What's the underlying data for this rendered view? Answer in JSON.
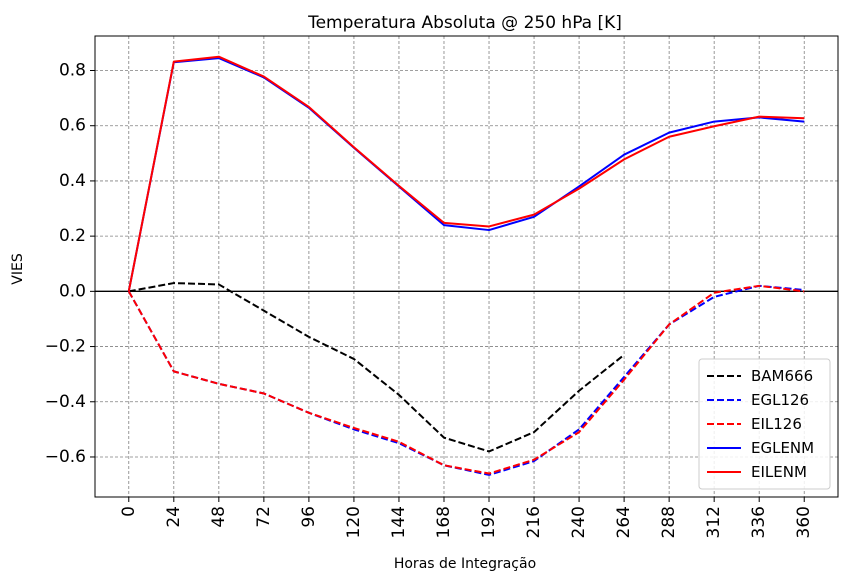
{
  "chart_data": {
    "type": "line",
    "title": "Temperatura Absoluta @ 250 hPa [K]",
    "xlabel": "Horas de Integração",
    "ylabel": "VIES",
    "x": [
      0,
      24,
      48,
      72,
      96,
      120,
      144,
      168,
      192,
      216,
      240,
      264,
      288,
      312,
      336,
      360
    ],
    "x_tick_labels": [
      "0",
      "24",
      "48",
      "72",
      "96",
      "120",
      "144",
      "168",
      "192",
      "216",
      "240",
      "264",
      "288",
      "312",
      "336",
      "360"
    ],
    "xlim": [
      -18,
      378
    ],
    "ylim": [
      -0.745,
      0.925
    ],
    "y_ticks": [
      -0.6,
      -0.4,
      -0.2,
      0.0,
      0.2,
      0.4,
      0.6,
      0.8
    ],
    "y_tick_labels": [
      "−0.6",
      "−0.4",
      "−0.2",
      "0.0",
      "0.2",
      "0.4",
      "0.6",
      "0.8"
    ],
    "grid": true,
    "zero_line": true,
    "legend_position": "bottom-right",
    "series": [
      {
        "name": "BAM666",
        "color": "#000000",
        "dash": "dashed",
        "values": [
          0.0,
          0.03,
          0.025,
          -0.07,
          -0.165,
          -0.245,
          -0.375,
          -0.53,
          -0.58,
          -0.51,
          -0.36,
          -0.23,
          null,
          null,
          null,
          null
        ]
      },
      {
        "name": "EGL126",
        "color": "#0000ff",
        "dash": "dashed",
        "values": [
          0.0,
          -0.29,
          -0.335,
          -0.37,
          -0.44,
          -0.5,
          -0.55,
          -0.63,
          -0.665,
          -0.615,
          -0.5,
          -0.31,
          -0.12,
          -0.02,
          0.02,
          0.005
        ]
      },
      {
        "name": "EIL126",
        "color": "#ff0000",
        "dash": "dashed",
        "values": [
          0.0,
          -0.29,
          -0.335,
          -0.37,
          -0.44,
          -0.495,
          -0.545,
          -0.63,
          -0.66,
          -0.61,
          -0.51,
          -0.32,
          -0.12,
          -0.005,
          0.02,
          0.0
        ]
      },
      {
        "name": "EGLENM",
        "color": "#0000ff",
        "dash": "solid",
        "values": [
          0.0,
          0.83,
          0.845,
          0.775,
          0.665,
          0.52,
          0.38,
          0.24,
          0.222,
          0.27,
          0.38,
          0.495,
          0.575,
          0.615,
          0.63,
          0.615
        ]
      },
      {
        "name": "EILENM",
        "color": "#ff0000",
        "dash": "solid",
        "values": [
          0.0,
          0.832,
          0.85,
          0.778,
          0.668,
          0.522,
          0.382,
          0.248,
          0.235,
          0.278,
          0.372,
          0.478,
          0.56,
          0.598,
          0.633,
          0.627
        ]
      }
    ]
  }
}
